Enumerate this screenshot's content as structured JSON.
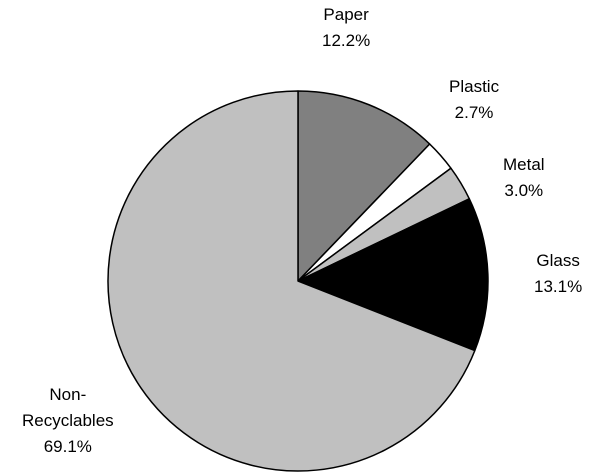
{
  "chart_data": {
    "type": "pie",
    "title": "",
    "slices": [
      {
        "label": "Paper",
        "display": [
          "Paper",
          "12.2%"
        ],
        "value": 12.2,
        "color": "#808080"
      },
      {
        "label": "Plastic",
        "display": [
          "Plastic",
          "2.7%"
        ],
        "value": 2.7,
        "color": "#ffffff"
      },
      {
        "label": "Metal",
        "display": [
          "Metal",
          "3.0%"
        ],
        "value": 3.0,
        "color": "#c0c0c0"
      },
      {
        "label": "Glass",
        "display": [
          "Glass",
          "13.1%"
        ],
        "value": 13.1,
        "color": "#000000"
      },
      {
        "label": "Non-Recyclables",
        "display": [
          "Non-",
          "Recyclables",
          "69.1%"
        ],
        "value": 69.1,
        "color": "#c0c0c0"
      }
    ],
    "start_angle": "12 o'clock",
    "direction": "clockwise",
    "legend": "none",
    "slice_outline_color": "#000000"
  }
}
